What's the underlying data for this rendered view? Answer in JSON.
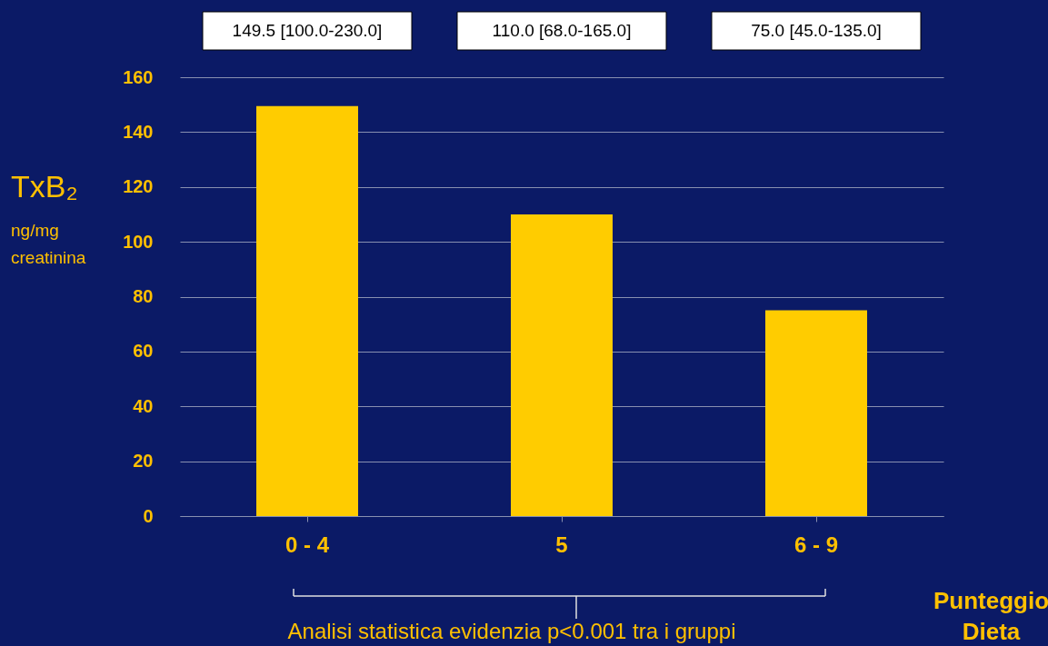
{
  "chart_data": {
    "type": "bar",
    "categories": [
      "0 - 4",
      "5",
      "6 - 9"
    ],
    "values": [
      149.5,
      110.0,
      75.0
    ],
    "value_labels": [
      "149.5 [100.0-230.0]",
      "110.0 [68.0-165.0]",
      "75.0 [45.0-135.0]"
    ],
    "color": "#ffcc00",
    "ylabel": "TxB₂ ng/mg creatinina",
    "xlabel": "Punteggio Dieta",
    "annotations": [
      "Analisi statistica evidenzia p<0.001 tra i gruppi"
    ],
    "ylim": [
      0,
      160
    ],
    "yticks": [
      0,
      20,
      40,
      60,
      80,
      100,
      120,
      140,
      160
    ],
    "grid": "y"
  }
}
